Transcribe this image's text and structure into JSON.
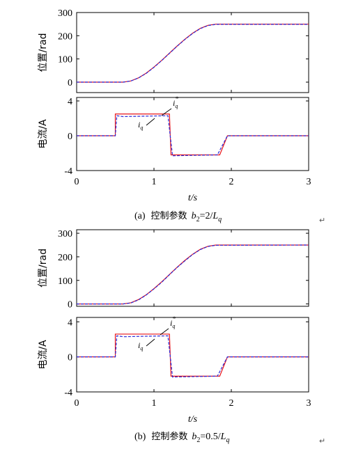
{
  "chart_data": [
    {
      "type": "line",
      "y_label": "位置/rad",
      "xlim": [
        0,
        3
      ],
      "xticks": [
        0,
        1,
        2,
        3
      ],
      "x_tick_labels": false,
      "ylim": [
        -45,
        300
      ],
      "yticks": [
        0,
        100,
        200,
        300
      ],
      "series": [
        {
          "color": "#e8151b",
          "dash": false,
          "x": [
            0,
            0.6,
            0.7,
            0.8,
            0.9,
            1.0,
            1.1,
            1.2,
            1.3,
            1.4,
            1.5,
            1.6,
            1.7,
            1.8,
            3
          ],
          "values": [
            0,
            0,
            5,
            18.5,
            39,
            65,
            94,
            125,
            156,
            185,
            211,
            232,
            245,
            250,
            250
          ]
        },
        {
          "color": "#2a2ad8",
          "dash": true,
          "x": [
            0,
            0.6,
            0.7,
            0.8,
            0.9,
            1.0,
            1.1,
            1.2,
            1.3,
            1.4,
            1.5,
            1.6,
            1.7,
            1.8,
            3
          ],
          "values": [
            0,
            0,
            5,
            18,
            38,
            64,
            93,
            124,
            155,
            184,
            210,
            231,
            244,
            249,
            249
          ]
        }
      ]
    },
    {
      "type": "line",
      "y_label": "电流/A",
      "x_label": "t/s",
      "xlim": [
        0,
        3
      ],
      "xticks": [
        0,
        1,
        2,
        3
      ],
      "x_tick_labels": true,
      "ylim": [
        -4,
        4.4
      ],
      "yticks": [
        -4,
        0,
        4
      ],
      "annotations": [
        {
          "base": "i",
          "sub": "q",
          "sup": "*"
        },
        {
          "base": "i",
          "sub": "q"
        }
      ],
      "series": [
        {
          "color": "#e8151b",
          "dash": false,
          "x": [
            0,
            0.5,
            0.5,
            1.2,
            1.22,
            1.85,
            1.95,
            3
          ],
          "values": [
            0,
            0,
            2.5,
            2.5,
            -2.2,
            -2.2,
            0,
            0
          ]
        },
        {
          "color": "#2a2ad8",
          "dash": true,
          "x": [
            0,
            0.5,
            0.52,
            0.6,
            1.18,
            1.24,
            1.82,
            1.95,
            3
          ],
          "values": [
            0,
            0,
            2.3,
            2.2,
            2.3,
            -2.3,
            -2.2,
            0,
            0
          ]
        }
      ]
    },
    {
      "type": "line",
      "y_label": "位置/rad",
      "xlim": [
        0,
        3
      ],
      "xticks": [
        0,
        1,
        2,
        3
      ],
      "x_tick_labels": false,
      "ylim": [
        -10,
        315
      ],
      "yticks": [
        0,
        100,
        200,
        300
      ],
      "series": [
        {
          "color": "#e8151b",
          "dash": false,
          "x": [
            0,
            0.6,
            0.7,
            0.8,
            0.9,
            1.0,
            1.1,
            1.2,
            1.3,
            1.4,
            1.5,
            1.6,
            1.7,
            1.8,
            3
          ],
          "values": [
            0,
            0,
            5,
            18.5,
            39,
            65,
            94,
            125,
            156,
            185,
            211,
            232,
            245,
            250,
            250
          ]
        },
        {
          "color": "#2a2ad8",
          "dash": true,
          "x": [
            0,
            0.6,
            0.7,
            0.8,
            0.9,
            1.0,
            1.1,
            1.2,
            1.3,
            1.4,
            1.5,
            1.6,
            1.7,
            1.8,
            3
          ],
          "values": [
            0,
            0,
            4,
            17,
            38,
            64,
            92,
            124,
            155,
            183,
            210,
            231,
            244,
            249,
            250
          ]
        }
      ]
    },
    {
      "type": "line",
      "y_label": "电流/A",
      "x_label": "t/s",
      "xlim": [
        0,
        3
      ],
      "xticks": [
        0,
        1,
        2,
        3
      ],
      "x_tick_labels": true,
      "ylim": [
        -4,
        4.5
      ],
      "yticks": [
        -4,
        0,
        4
      ],
      "annotations": [
        {
          "base": "i",
          "sub": "q",
          "sup": "*"
        },
        {
          "base": "i",
          "sub": "q"
        }
      ],
      "series": [
        {
          "color": "#e8151b",
          "dash": false,
          "x": [
            0,
            0.5,
            0.5,
            1.2,
            1.22,
            1.85,
            1.95,
            3
          ],
          "values": [
            0,
            0,
            2.6,
            2.6,
            -2.2,
            -2.2,
            0,
            0
          ]
        },
        {
          "color": "#2a2ad8",
          "dash": true,
          "x": [
            0,
            0.5,
            0.52,
            0.6,
            1.18,
            1.24,
            1.82,
            1.95,
            3
          ],
          "values": [
            0,
            0,
            2.4,
            2.3,
            2.4,
            -2.3,
            -2.2,
            0,
            0
          ]
        }
      ]
    }
  ],
  "captions": [
    {
      "label": "(a)",
      "text": "控制参数",
      "b": "b",
      "b_sub": "2",
      "eq": "=2/",
      "L": "L",
      "L_sub": "q",
      "return_mark": "↵"
    },
    {
      "label": "(b)",
      "text": "控制参数",
      "b": "b",
      "b_sub": "2",
      "eq": "=0.5/",
      "L": "L",
      "L_sub": "q",
      "return_mark": "↵"
    }
  ]
}
